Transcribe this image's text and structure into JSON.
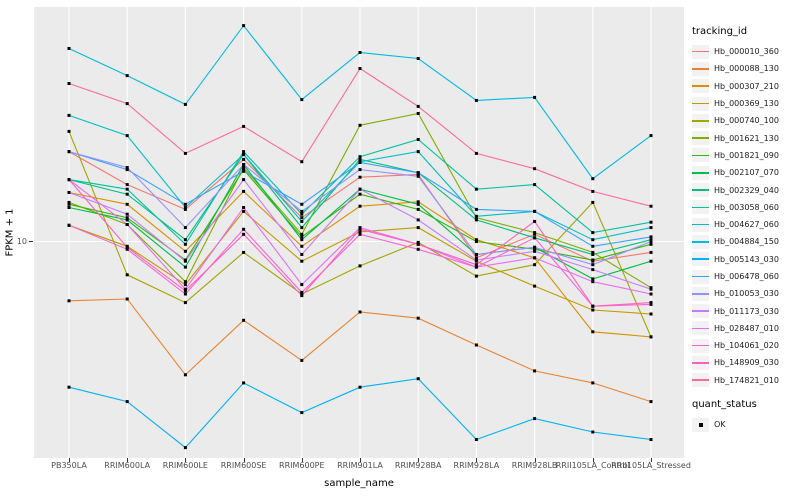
{
  "figure": {
    "background": "#FFFFFF",
    "panel_background": "#EBEBEB",
    "grid_color": "#FFFFFF",
    "tick_text_color": "#4D4D4D",
    "point_color": "#000000"
  },
  "axes": {
    "x_title": "sample_name",
    "y_title": "FPKM + 1",
    "y_tick_label": "10"
  },
  "legend": {
    "tracking_title": "tracking_id",
    "quant_title": "quant_status",
    "quant_items": [
      {
        "label": "OK",
        "shape": "filled-square"
      }
    ]
  },
  "chart_data": {
    "type": "line",
    "title": "",
    "xlabel": "sample_name",
    "ylabel": "FPKM + 1",
    "y_scale": "log10",
    "y_reference_tick": 10,
    "grid": "vertical-per-category-plus-y10",
    "legend_position": "right",
    "categories": [
      "PB350LA",
      "RRIM600LA",
      "RRIM600LE",
      "RRIM600SE",
      "RRIM600PE",
      "RRIM901LA",
      "RRIM928BA",
      "RRIM928LA",
      "RRIM928LB",
      "RRII105LA_Control",
      "RRII105LA_Stressed"
    ],
    "series": [
      {
        "name": "Hb_000010_360",
        "color": "#F8766D",
        "values": [
          26.2,
          18.4,
          14.1,
          24.1,
          12.9,
          19.9,
          20.5,
          8.4,
          10.8,
          8.1,
          8.9
        ]
      },
      {
        "name": "Hb_000088_130",
        "color": "#EA8331",
        "values": [
          5.3,
          5.4,
          2.4,
          4.3,
          2.8,
          4.7,
          4.4,
          3.3,
          2.5,
          2.2,
          1.8
        ]
      },
      {
        "name": "Hb_000307_210",
        "color": "#D89000",
        "values": [
          16.9,
          14.9,
          9.0,
          17.1,
          9.5,
          14.6,
          15.3,
          10.2,
          8.4,
          3.8,
          3.6
        ]
      },
      {
        "name": "Hb_000369_130",
        "color": "#C09B00",
        "values": [
          11.9,
          9.5,
          6.3,
          13.8,
          8.1,
          11.1,
          11.6,
          8.1,
          6.2,
          4.8,
          4.6
        ]
      },
      {
        "name": "Hb_000740_100",
        "color": "#A3A500",
        "values": [
          32.5,
          7.0,
          5.2,
          8.9,
          5.7,
          7.7,
          9.9,
          6.9,
          7.8,
          15.2,
          3.6
        ]
      },
      {
        "name": "Hb_001621_130",
        "color": "#7CAE00",
        "values": [
          15.2,
          12.0,
          6.5,
          22.1,
          10.8,
          34.7,
          39.4,
          12.9,
          11.0,
          8.9,
          6.1
        ]
      },
      {
        "name": "Hb_001821_090",
        "color": "#39B600",
        "values": [
          14.9,
          12.9,
          8.2,
          21.6,
          10.5,
          16.6,
          14.1,
          10.0,
          9.2,
          8.2,
          9.7
        ]
      },
      {
        "name": "Hb_002107_070",
        "color": "#00BB4E",
        "values": [
          14.4,
          12.6,
          7.6,
          22.8,
          10.2,
          17.5,
          14.9,
          8.7,
          9.4,
          6.7,
          8.1
        ]
      },
      {
        "name": "Hb_002329_040",
        "color": "#00BF7D",
        "values": [
          19.4,
          16.6,
          10.2,
          25.4,
          11.6,
          24.1,
          20.9,
          12.6,
          10.4,
          8.7,
          10.2
        ]
      },
      {
        "name": "Hb_003058_060",
        "color": "#00C1A3",
        "values": [
          19.4,
          17.5,
          9.7,
          26.2,
          13.4,
          24.8,
          29.8,
          17.5,
          18.4,
          11.0,
          12.3
        ]
      },
      {
        "name": "Hb_004627_060",
        "color": "#00BFC4",
        "values": [
          38.6,
          31.1,
          14.4,
          25.4,
          12.4,
          23.5,
          26.2,
          13.1,
          13.8,
          10.2,
          11.6
        ]
      },
      {
        "name": "Hb_004884_150",
        "color": "#00BAE0",
        "values": [
          79.0,
          59.1,
          43.4,
          101.0,
          45.7,
          75.7,
          71.0,
          45.3,
          46.8,
          19.6,
          31.1
        ]
      },
      {
        "name": "Hb_005143_030",
        "color": "#00B0F6",
        "values": [
          2.1,
          1.8,
          1.1,
          2.2,
          1.6,
          2.1,
          2.3,
          1.2,
          1.5,
          1.3,
          1.2
        ]
      },
      {
        "name": "Hb_006478_060",
        "color": "#35A2FF",
        "values": [
          26.2,
          21.6,
          14.9,
          21.2,
          14.9,
          23.3,
          20.9,
          14.1,
          13.8,
          9.5,
          10.5
        ]
      },
      {
        "name": "Hb_010053_030",
        "color": "#9590FF",
        "values": [
          26.2,
          22.1,
          11.6,
          22.8,
          13.8,
          21.6,
          20.1,
          8.7,
          9.4,
          7.8,
          10.0
        ]
      },
      {
        "name": "Hb_011173_030",
        "color": "#C77CFF",
        "values": [
          16.9,
          13.4,
          8.1,
          19.4,
          8.7,
          17.5,
          12.6,
          8.2,
          9.0,
          7.4,
          6.0
        ]
      },
      {
        "name": "Hb_028487_010",
        "color": "#E76BF3",
        "values": [
          19.4,
          12.0,
          6.0,
          14.4,
          6.3,
          11.6,
          9.7,
          7.6,
          8.4,
          6.5,
          5.7
        ]
      },
      {
        "name": "Hb_104061_020",
        "color": "#FA62DB",
        "values": [
          11.9,
          9.2,
          5.7,
          11.4,
          5.8,
          10.8,
          9.2,
          7.6,
          10.4,
          5.0,
          5.1
        ]
      },
      {
        "name": "Hb_148909_030",
        "color": "#FF62BC",
        "values": [
          19.4,
          9.4,
          5.9,
          10.8,
          5.6,
          11.4,
          9.7,
          7.8,
          12.4,
          5.0,
          5.2
        ]
      },
      {
        "name": "Hb_174821_010",
        "color": "#FF6A98",
        "values": [
          54.3,
          43.8,
          25.7,
          34.3,
          23.5,
          63.8,
          42.5,
          25.7,
          21.8,
          17.1,
          14.6
        ]
      }
    ]
  }
}
